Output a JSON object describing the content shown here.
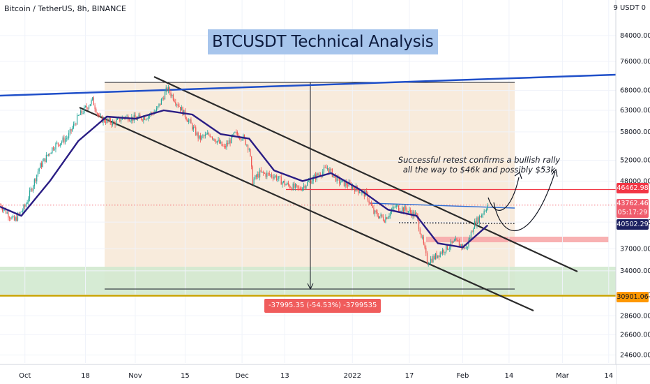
{
  "header": {
    "symbol_line": "Bitcoin / TetherUS, 8h, BINANCE",
    "currency": "9 USDT 0"
  },
  "title_box": {
    "text": "BTCUSDT Technical Analysis"
  },
  "annotation": {
    "line1": "Successful retest confirms a bullish rally",
    "line2": "all the way to $46k and possibly $53k"
  },
  "measurement": {
    "label": "-37995.35 (-54.53%) -3799535"
  },
  "price_tags": {
    "resistance": "46462.98",
    "current_price": "43762.46",
    "countdown": "05:17:29",
    "moving_average": "40502.29",
    "support": "30901.06"
  },
  "colors": {
    "bull": "#26a69a",
    "bear": "#ef5350",
    "ma": "#2a1d84",
    "trendline_blue": "#1f4fc9",
    "channel": "#2b2b2b",
    "resistance_red": "#f23645",
    "zone_green": "#d2e9cf",
    "zone_peach": "#f6e4d0",
    "support_yellow": "#c9a400"
  },
  "chart_data": {
    "type": "candlestick",
    "symbol": "Bitcoin / TetherUS",
    "interval": "8h",
    "exchange": "BINANCE",
    "y_scale": "log",
    "ylim": [
      22600,
      95000
    ],
    "y_ticks": [
      84000,
      76000,
      68000,
      63000,
      58000,
      52000,
      48000,
      41000,
      37000,
      34000,
      31000,
      28600,
      26600,
      24600
    ],
    "y_tick_labels": [
      "84000.00",
      "76000.00",
      "68000.00",
      "63000.00",
      "58000.00",
      "52000.00",
      "48000.00",
      "41000.00",
      "37000.00",
      "34000.00",
      "31000.00",
      "28600.00",
      "26600.00",
      "24600.00"
    ],
    "x_range": [
      "2021-09-24",
      "2022-03-16"
    ],
    "x_ticks": [
      {
        "date": "2021-10-01",
        "label": "Oct"
      },
      {
        "date": "2021-10-18",
        "label": "18"
      },
      {
        "date": "2021-11-01",
        "label": "Nov"
      },
      {
        "date": "2021-11-15",
        "label": "15"
      },
      {
        "date": "2021-12-01",
        "label": "Dec"
      },
      {
        "date": "2021-12-13",
        "label": "13"
      },
      {
        "date": "2022-01-01",
        "label": "2022"
      },
      {
        "date": "2022-01-17",
        "label": "17"
      },
      {
        "date": "2022-02-01",
        "label": "Feb"
      },
      {
        "date": "2022-02-14",
        "label": "14"
      },
      {
        "date": "2022-03-01",
        "label": "Mar"
      },
      {
        "date": "2022-03-14",
        "label": "14"
      }
    ],
    "price_path": [
      {
        "date": "2021-09-24",
        "close": 43800
      },
      {
        "date": "2021-09-28",
        "close": 41200
      },
      {
        "date": "2021-10-01",
        "close": 43500
      },
      {
        "date": "2021-10-05",
        "close": 50500
      },
      {
        "date": "2021-10-09",
        "close": 54800
      },
      {
        "date": "2021-10-13",
        "close": 56800
      },
      {
        "date": "2021-10-16",
        "close": 61500
      },
      {
        "date": "2021-10-20",
        "close": 65500
      },
      {
        "date": "2021-10-22",
        "close": 61000
      },
      {
        "date": "2021-10-26",
        "close": 60000
      },
      {
        "date": "2021-10-29",
        "close": 61500
      },
      {
        "date": "2021-11-01",
        "close": 61000
      },
      {
        "date": "2021-11-04",
        "close": 61500
      },
      {
        "date": "2021-11-07",
        "close": 63000
      },
      {
        "date": "2021-11-10",
        "close": 68500
      },
      {
        "date": "2021-11-13",
        "close": 64500
      },
      {
        "date": "2021-11-16",
        "close": 60500
      },
      {
        "date": "2021-11-19",
        "close": 56500
      },
      {
        "date": "2021-11-22",
        "close": 57500
      },
      {
        "date": "2021-11-26",
        "close": 54500
      },
      {
        "date": "2021-11-29",
        "close": 57500
      },
      {
        "date": "2021-12-01",
        "close": 57000
      },
      {
        "date": "2021-12-03",
        "close": 54500
      },
      {
        "date": "2021-12-04",
        "close": 48000
      },
      {
        "date": "2021-12-06",
        "close": 49500
      },
      {
        "date": "2021-12-10",
        "close": 49000
      },
      {
        "date": "2021-12-13",
        "close": 47500
      },
      {
        "date": "2021-12-17",
        "close": 46500
      },
      {
        "date": "2021-12-21",
        "close": 48500
      },
      {
        "date": "2021-12-25",
        "close": 50500
      },
      {
        "date": "2021-12-28",
        "close": 48000
      },
      {
        "date": "2022-01-01",
        "close": 47000
      },
      {
        "date": "2022-01-05",
        "close": 45500
      },
      {
        "date": "2022-01-07",
        "close": 42500
      },
      {
        "date": "2022-01-10",
        "close": 41500
      },
      {
        "date": "2022-01-13",
        "close": 43500
      },
      {
        "date": "2022-01-16",
        "close": 43000
      },
      {
        "date": "2022-01-19",
        "close": 42000
      },
      {
        "date": "2022-01-21",
        "close": 37500
      },
      {
        "date": "2022-01-22",
        "close": 35200
      },
      {
        "date": "2022-01-24",
        "close": 35800
      },
      {
        "date": "2022-01-27",
        "close": 37000
      },
      {
        "date": "2022-01-30",
        "close": 38000
      },
      {
        "date": "2022-02-02",
        "close": 37000
      },
      {
        "date": "2022-02-04",
        "close": 40500
      },
      {
        "date": "2022-02-06",
        "close": 42000
      },
      {
        "date": "2022-02-08",
        "close": 43762.46
      }
    ],
    "moving_average": [
      {
        "date": "2021-09-24",
        "value": 43500
      },
      {
        "date": "2021-09-30",
        "value": 42000
      },
      {
        "date": "2021-10-08",
        "value": 48000
      },
      {
        "date": "2021-10-16",
        "value": 56000
      },
      {
        "date": "2021-10-24",
        "value": 61500
      },
      {
        "date": "2021-11-01",
        "value": 61000
      },
      {
        "date": "2021-11-09",
        "value": 63000
      },
      {
        "date": "2021-11-17",
        "value": 62000
      },
      {
        "date": "2021-11-25",
        "value": 57500
      },
      {
        "date": "2021-12-03",
        "value": 56500
      },
      {
        "date": "2021-12-10",
        "value": 50000
      },
      {
        "date": "2021-12-18",
        "value": 48000
      },
      {
        "date": "2021-12-26",
        "value": 49500
      },
      {
        "date": "2022-01-03",
        "value": 46500
      },
      {
        "date": "2022-01-11",
        "value": 43000
      },
      {
        "date": "2022-01-19",
        "value": 42000
      },
      {
        "date": "2022-01-25",
        "value": 37800
      },
      {
        "date": "2022-02-01",
        "value": 37200
      },
      {
        "date": "2022-02-08",
        "value": 40502.29
      }
    ],
    "levels": {
      "resistance": 46462.98,
      "current": 43762.46,
      "moving_average": 40502.29,
      "support": 30901.06
    }
  }
}
